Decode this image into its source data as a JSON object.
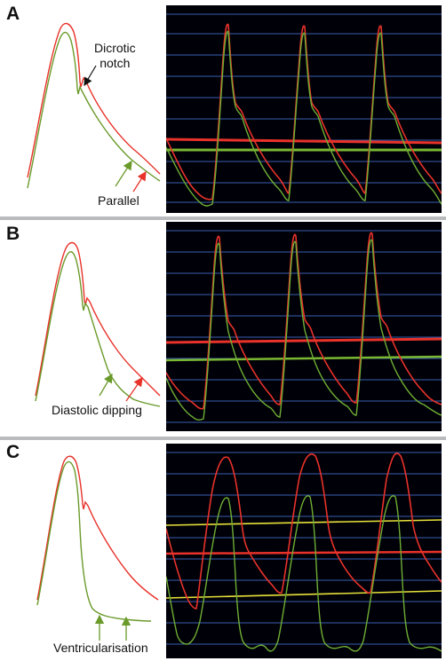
{
  "colors": {
    "red_trace": "#e8322a",
    "green_trace": "#6a9a2a",
    "scope_background": "#000008",
    "scope_grid": "#3a5fb0",
    "yellow_line": "#e8e23a",
    "panel_separator": "#b9bbbf"
  },
  "panels": [
    {
      "letter": "A",
      "annotations": {
        "notch_line1": "Dicrotic",
        "notch_line2": "notch",
        "bottom": "Parallel"
      }
    },
    {
      "letter": "B",
      "annotations": {
        "bottom": "Diastolic dipping"
      }
    },
    {
      "letter": "C",
      "annotations": {
        "bottom": "Ventricularisation"
      }
    }
  ]
}
